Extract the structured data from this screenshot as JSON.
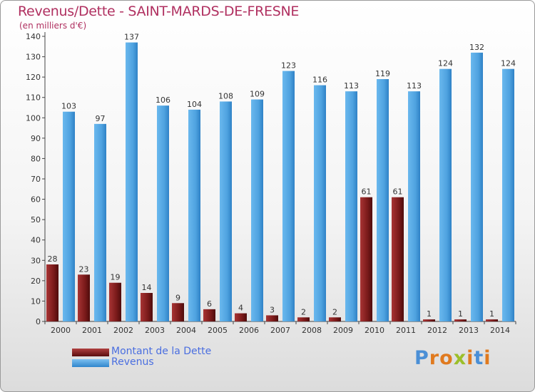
{
  "chart_data": {
    "type": "bar",
    "title": "Revenus/Dette - SAINT-MARDS-DE-FRESNE",
    "subtitle": "(en milliers d'€)",
    "categories": [
      "2000",
      "2001",
      "2002",
      "2003",
      "2004",
      "2005",
      "2006",
      "2007",
      "2008",
      "2009",
      "2010",
      "2011",
      "2012",
      "2013",
      "2014"
    ],
    "series": [
      {
        "name": "Montant de la Dette",
        "color": "#7a1a1a",
        "values": [
          28,
          23,
          19,
          14,
          9,
          6,
          4,
          3,
          2,
          2,
          61,
          61,
          1,
          1,
          1
        ]
      },
      {
        "name": "Revenus",
        "color": "#4fa3e0",
        "values": [
          103,
          97,
          137,
          106,
          104,
          108,
          109,
          123,
          116,
          113,
          119,
          113,
          124,
          132,
          124
        ]
      }
    ],
    "ylim": [
      0,
      140
    ],
    "yticks": [
      0,
      10,
      20,
      30,
      40,
      50,
      60,
      70,
      80,
      90,
      100,
      110,
      120,
      130,
      140
    ],
    "grid": false,
    "legend": "bottom-left"
  },
  "logo": {
    "text": "Proxiti",
    "letters": [
      "P",
      "r",
      "o",
      "x",
      "i",
      "t",
      "i"
    ],
    "colors": [
      "#4a8fd6",
      "#e07a1f",
      "#e07a1f",
      "#9cbf2a",
      "#e07a1f",
      "#4a8fd6",
      "#e07a1f"
    ]
  }
}
